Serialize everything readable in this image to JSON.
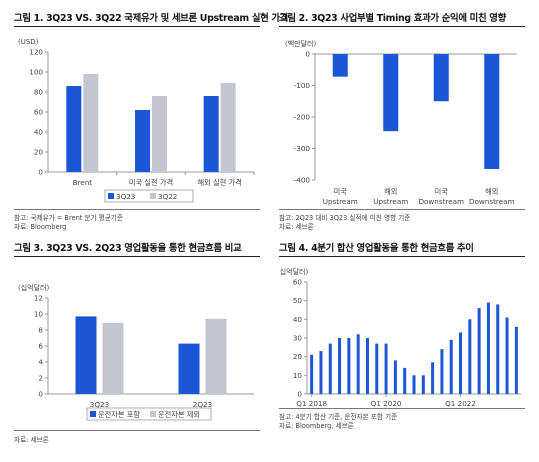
{
  "charts": [
    {
      "title": "그림 1. 3Q23 VS. 3Q22 국제유가 및 세브론 Upstream 실현 가격",
      "notes": [
        "참고: 국제유가 = Brent 분기 평균기준",
        "자료: Bloomberg"
      ],
      "legend_labels": [
        "3Q23",
        "3Q22"
      ]
    },
    {
      "title": "그림 2. 3Q23 사업부별 Timing 효과가 순익에 미친 영향",
      "notes": [
        "참고: 2Q23 대비 3Q23 실적에 미친 영향 기준",
        "자료: 세브론"
      ]
    },
    {
      "title": "그림 3. 3Q23 VS. 2Q23 영업활동을 통한 현금흐름 비교",
      "notes": [
        "자료: 세브론"
      ],
      "legend_labels": [
        "운전자본 포함",
        "운전자본 제외"
      ]
    },
    {
      "title": "그림 4. 4분기 합산 영업활동을 통한 현금흐름 추이",
      "notes": [
        "참고: 4분기 합산 기준, 운전자본 포함 기준",
        "자료: Bloomberg, 세브론"
      ]
    }
  ],
  "colors": {
    "primary": "#1a56d6",
    "secondary": "#c3c6d1",
    "axis": "#9a9a9a",
    "grid": "#e5e5e5"
  },
  "chart_data": [
    {
      "type": "bar",
      "unit_label": "(USD)",
      "categories": [
        "Brent",
        "미국 실현 가격",
        "해외 실현 가격"
      ],
      "series": [
        {
          "name": "3Q23",
          "values": [
            86,
            62,
            76
          ]
        },
        {
          "name": "3Q22",
          "values": [
            98,
            76,
            89
          ]
        }
      ],
      "ylim": [
        0,
        120
      ],
      "yticks": [
        0,
        20,
        40,
        60,
        80,
        100,
        120
      ],
      "legend_position": "bottom",
      "grid": false
    },
    {
      "type": "bar",
      "unit_label": "(백만달러)",
      "categories": [
        "미국\nUpstream",
        "해외\nUpstream",
        "미국\nDownstream",
        "해외\nDownstream"
      ],
      "values": [
        -72,
        -245,
        -150,
        -365
      ],
      "ylim": [
        -400,
        0
      ],
      "yticks": [
        0,
        -100,
        -200,
        -300,
        -400
      ],
      "grid": false
    },
    {
      "type": "bar",
      "unit_label": "(십억달러)",
      "categories": [
        "3Q23",
        "2Q23"
      ],
      "series": [
        {
          "name": "운전자본 포함",
          "values": [
            9.7,
            6.3
          ]
        },
        {
          "name": "운전자본 제외",
          "values": [
            8.9,
            9.4
          ]
        }
      ],
      "ylim": [
        0,
        12
      ],
      "yticks": [
        0,
        2,
        4,
        6,
        8,
        10,
        12
      ],
      "legend_position": "bottom",
      "grid": false
    },
    {
      "type": "bar",
      "unit_label": "(십억달러)",
      "x_labels": [
        "Q1 2018",
        "Q1 2020",
        "Q1 2022"
      ],
      "x_label_indices": [
        0,
        8,
        16
      ],
      "values": [
        21,
        23,
        27,
        30,
        30,
        32,
        30,
        27,
        27,
        18,
        14,
        10,
        10,
        17,
        24,
        29,
        33,
        40,
        46,
        49,
        48,
        41,
        36
      ],
      "ylim": [
        0,
        60
      ],
      "yticks": [
        0,
        10,
        20,
        30,
        40,
        50,
        60
      ],
      "grid": false
    }
  ]
}
